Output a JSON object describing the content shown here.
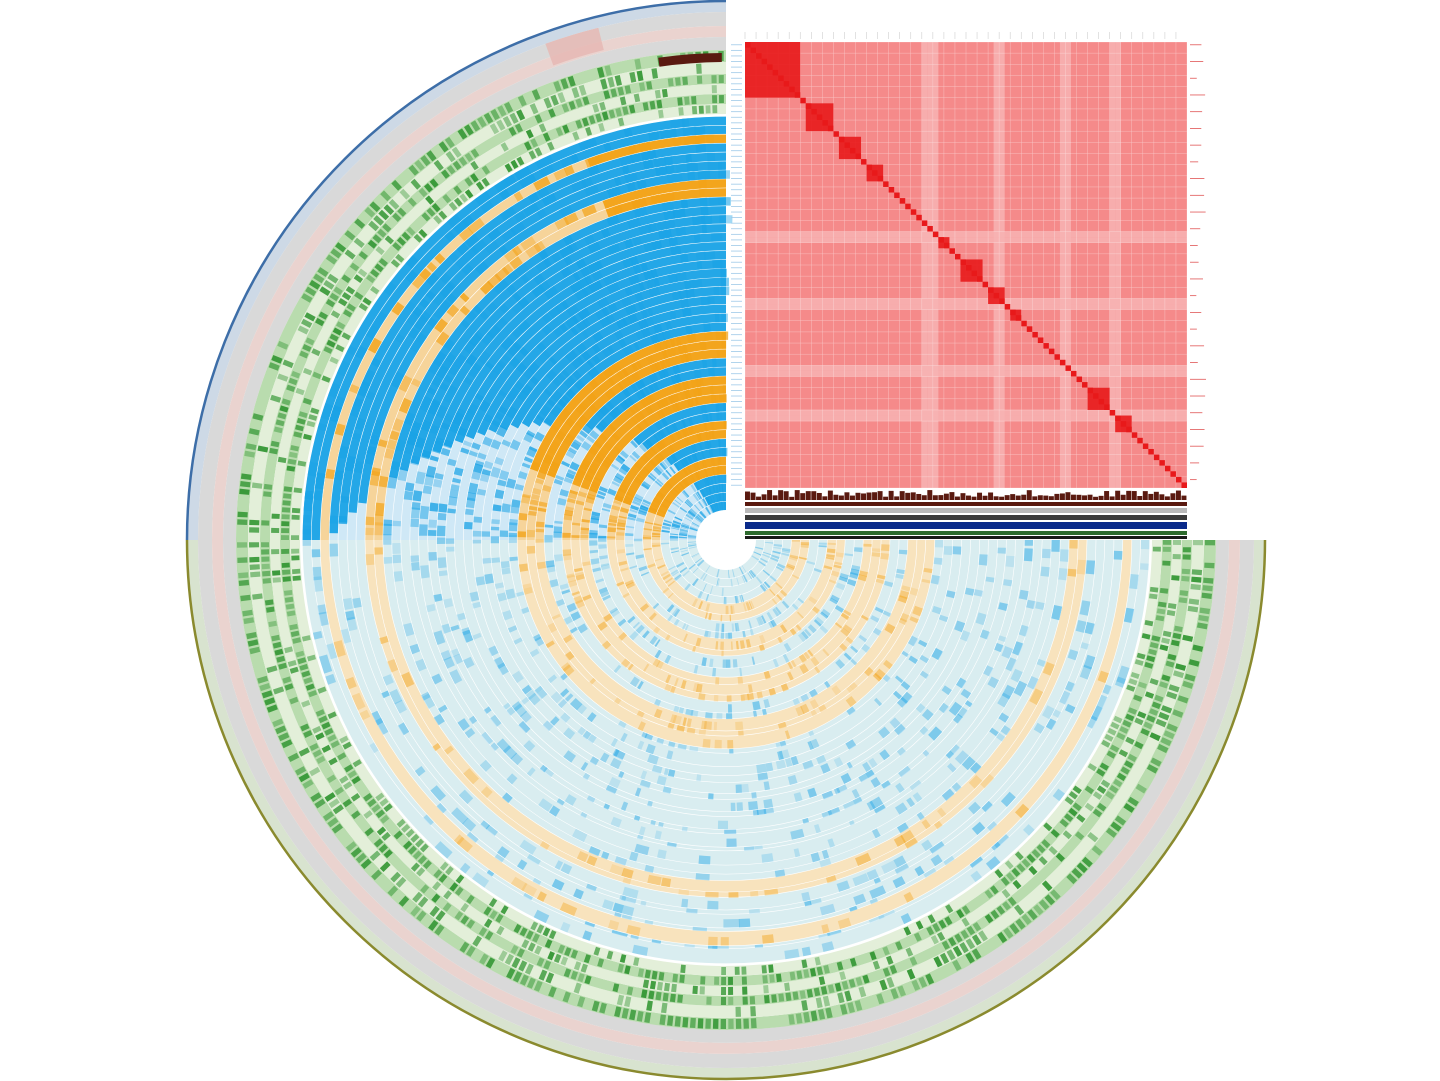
{
  "figure": {
    "type": "circular_phylogenomic_heatmap",
    "open_quadrant": "top-right",
    "inset": "pairwise_similarity_matrix"
  },
  "colors": {
    "background": "#ffffff",
    "outer_arc_upper": "#3d6ea8",
    "outer_arc_lower": "#8a8a2e",
    "outer_band_upper": "#cdd9e6",
    "outer_band_lower": "#d8e3cf",
    "gray_band": "#d9d9d9",
    "green_track": "#3a9a3a",
    "light_green_track": "#b9dcae",
    "pink_band": "#ead3cf",
    "blue_dense": "#1aa3e6",
    "blue_light": "#cfe8f6",
    "blue_pale": "#d9edf0",
    "orange_dense": "#f2a216",
    "orange_pale": "#f8e3bd",
    "brown_bar": "#5a1a10",
    "matrix_base": "#f58a8a",
    "matrix_light": "#f7b3b3",
    "matrix_dark": "#e8191b",
    "matrix_label": "#e05555",
    "navy_bar": "#0a2a8a",
    "black_bar": "#1a1a1a"
  },
  "tracks": {
    "blue_layers": 28,
    "orange_layers": 10,
    "green_layers": 6
  },
  "matrix": {
    "rows": 80,
    "cols": 80,
    "clusters": [
      {
        "start": 0,
        "size": 10
      },
      {
        "start": 11,
        "size": 5
      },
      {
        "start": 17,
        "size": 4
      },
      {
        "start": 22,
        "size": 3
      },
      {
        "start": 35,
        "size": 2
      },
      {
        "start": 39,
        "size": 4
      },
      {
        "start": 44,
        "size": 3
      },
      {
        "start": 48,
        "size": 2
      },
      {
        "start": 62,
        "size": 4
      },
      {
        "start": 67,
        "size": 3
      }
    ],
    "pale_columns": [
      32,
      33,
      34,
      45,
      46,
      57,
      58,
      66,
      67
    ],
    "pale_rows": [
      34,
      35,
      46,
      47,
      58,
      59,
      66,
      67
    ]
  }
}
